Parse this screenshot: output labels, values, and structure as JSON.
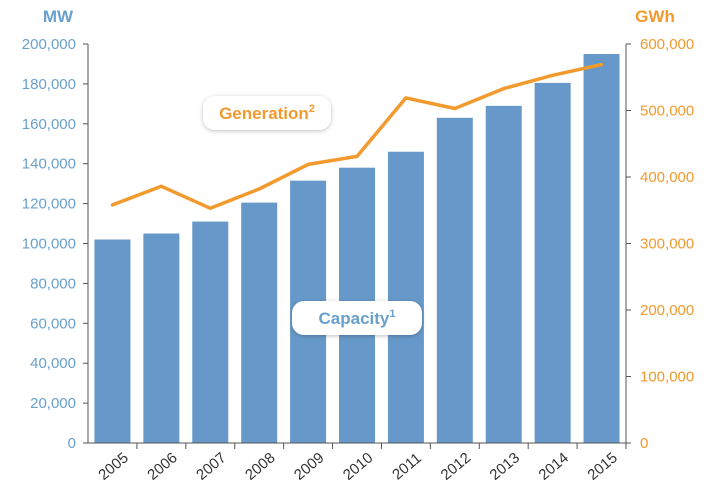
{
  "chart_data": {
    "type": "bar+line",
    "categories": [
      "2005",
      "2006",
      "2007",
      "2008",
      "2009",
      "2010",
      "2011",
      "2012",
      "2013",
      "2014",
      "2015"
    ],
    "series": [
      {
        "name": "Capacity",
        "footnote": "1",
        "kind": "bar",
        "axis": "left",
        "color": "#6699c9",
        "values": [
          102000,
          105000,
          111000,
          120500,
          131500,
          138000,
          146000,
          163000,
          169000,
          180500,
          195000
        ]
      },
      {
        "name": "Generation",
        "footnote": "2",
        "kind": "line",
        "axis": "right",
        "color": "#f29a2e",
        "values": [
          358000,
          386000,
          353000,
          382000,
          419000,
          431000,
          519000,
          503000,
          533000,
          553000,
          569000
        ]
      }
    ],
    "left_axis": {
      "unit": "MW",
      "ylim": [
        0,
        200000
      ],
      "ticks": [
        "0",
        "20,000",
        "40,000",
        "60,000",
        "80,000",
        "100,000",
        "120,000",
        "140,000",
        "160,000",
        "180,000",
        "200,000"
      ]
    },
    "right_axis": {
      "unit": "GWh",
      "ylim": [
        0,
        600000
      ],
      "ticks": [
        "0",
        "100,000",
        "200,000",
        "300,000",
        "400,000",
        "500,000",
        "600,000"
      ]
    },
    "grid": false
  }
}
